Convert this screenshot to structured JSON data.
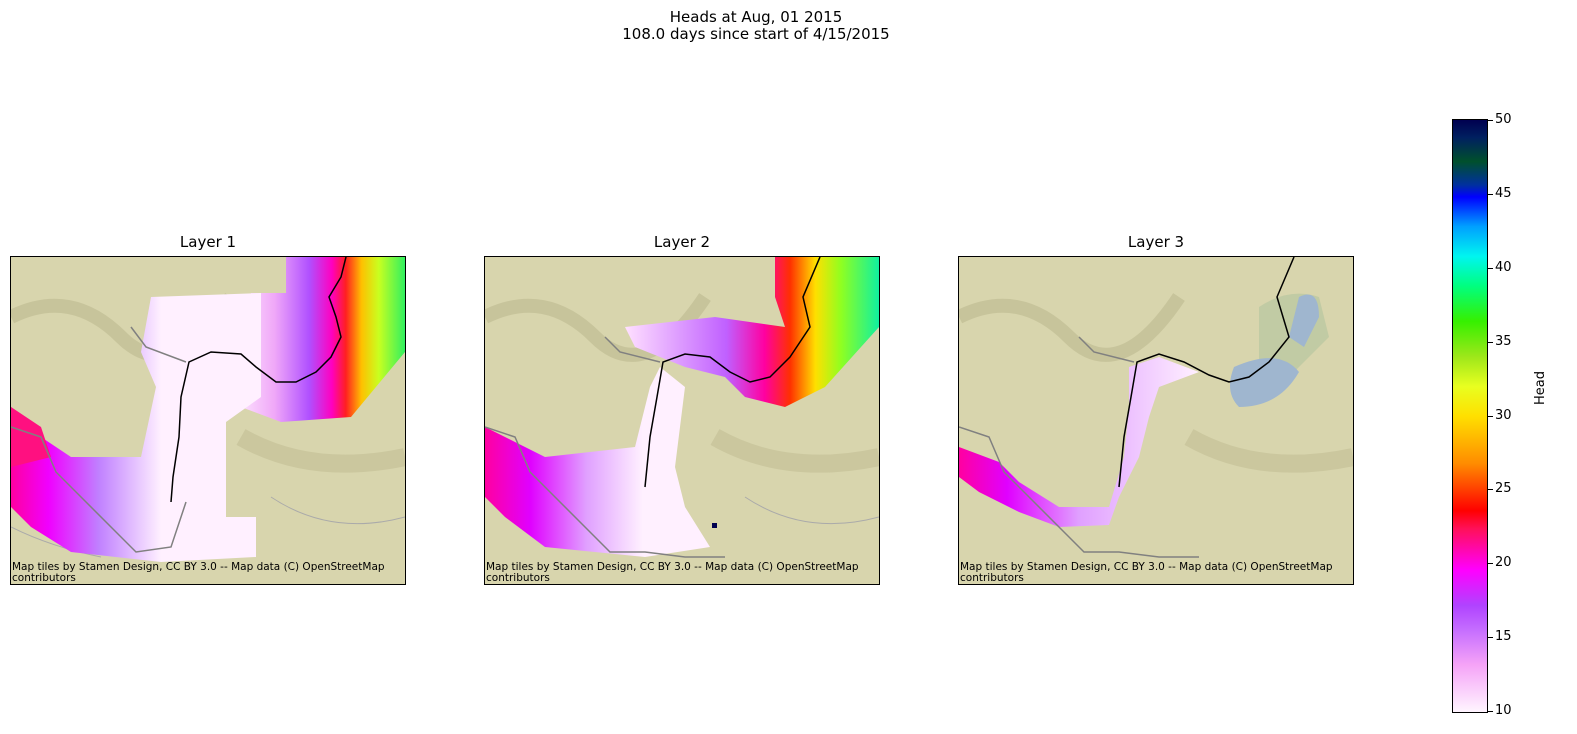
{
  "figure": {
    "title_line1": "Heads at Aug, 01 2015",
    "title_line2": "108.0 days since start of 4/15/2015"
  },
  "panels": [
    {
      "title": "Layer 1",
      "attribution": "Map tiles by Stamen Design, CC BY 3.0 -- Map data (C) OpenStreetMap contributors"
    },
    {
      "title": "Layer 2",
      "attribution": "Map tiles by Stamen Design, CC BY 3.0 -- Map data (C) OpenStreetMap contributors"
    },
    {
      "title": "Layer 3",
      "attribution": "Map tiles by Stamen Design, CC BY 3.0 -- Map data (C) OpenStreetMap contributors"
    }
  ],
  "colorbar": {
    "label": "Head",
    "min": 10,
    "max": 50,
    "ticks": [
      "10",
      "15",
      "20",
      "25",
      "30",
      "35",
      "40",
      "45",
      "50"
    ]
  },
  "colors": {
    "basemap": "#d8d5ad",
    "water": "#9fb6cf",
    "river_cells_black": "#000000",
    "river_cells_gray": "#808080"
  }
}
